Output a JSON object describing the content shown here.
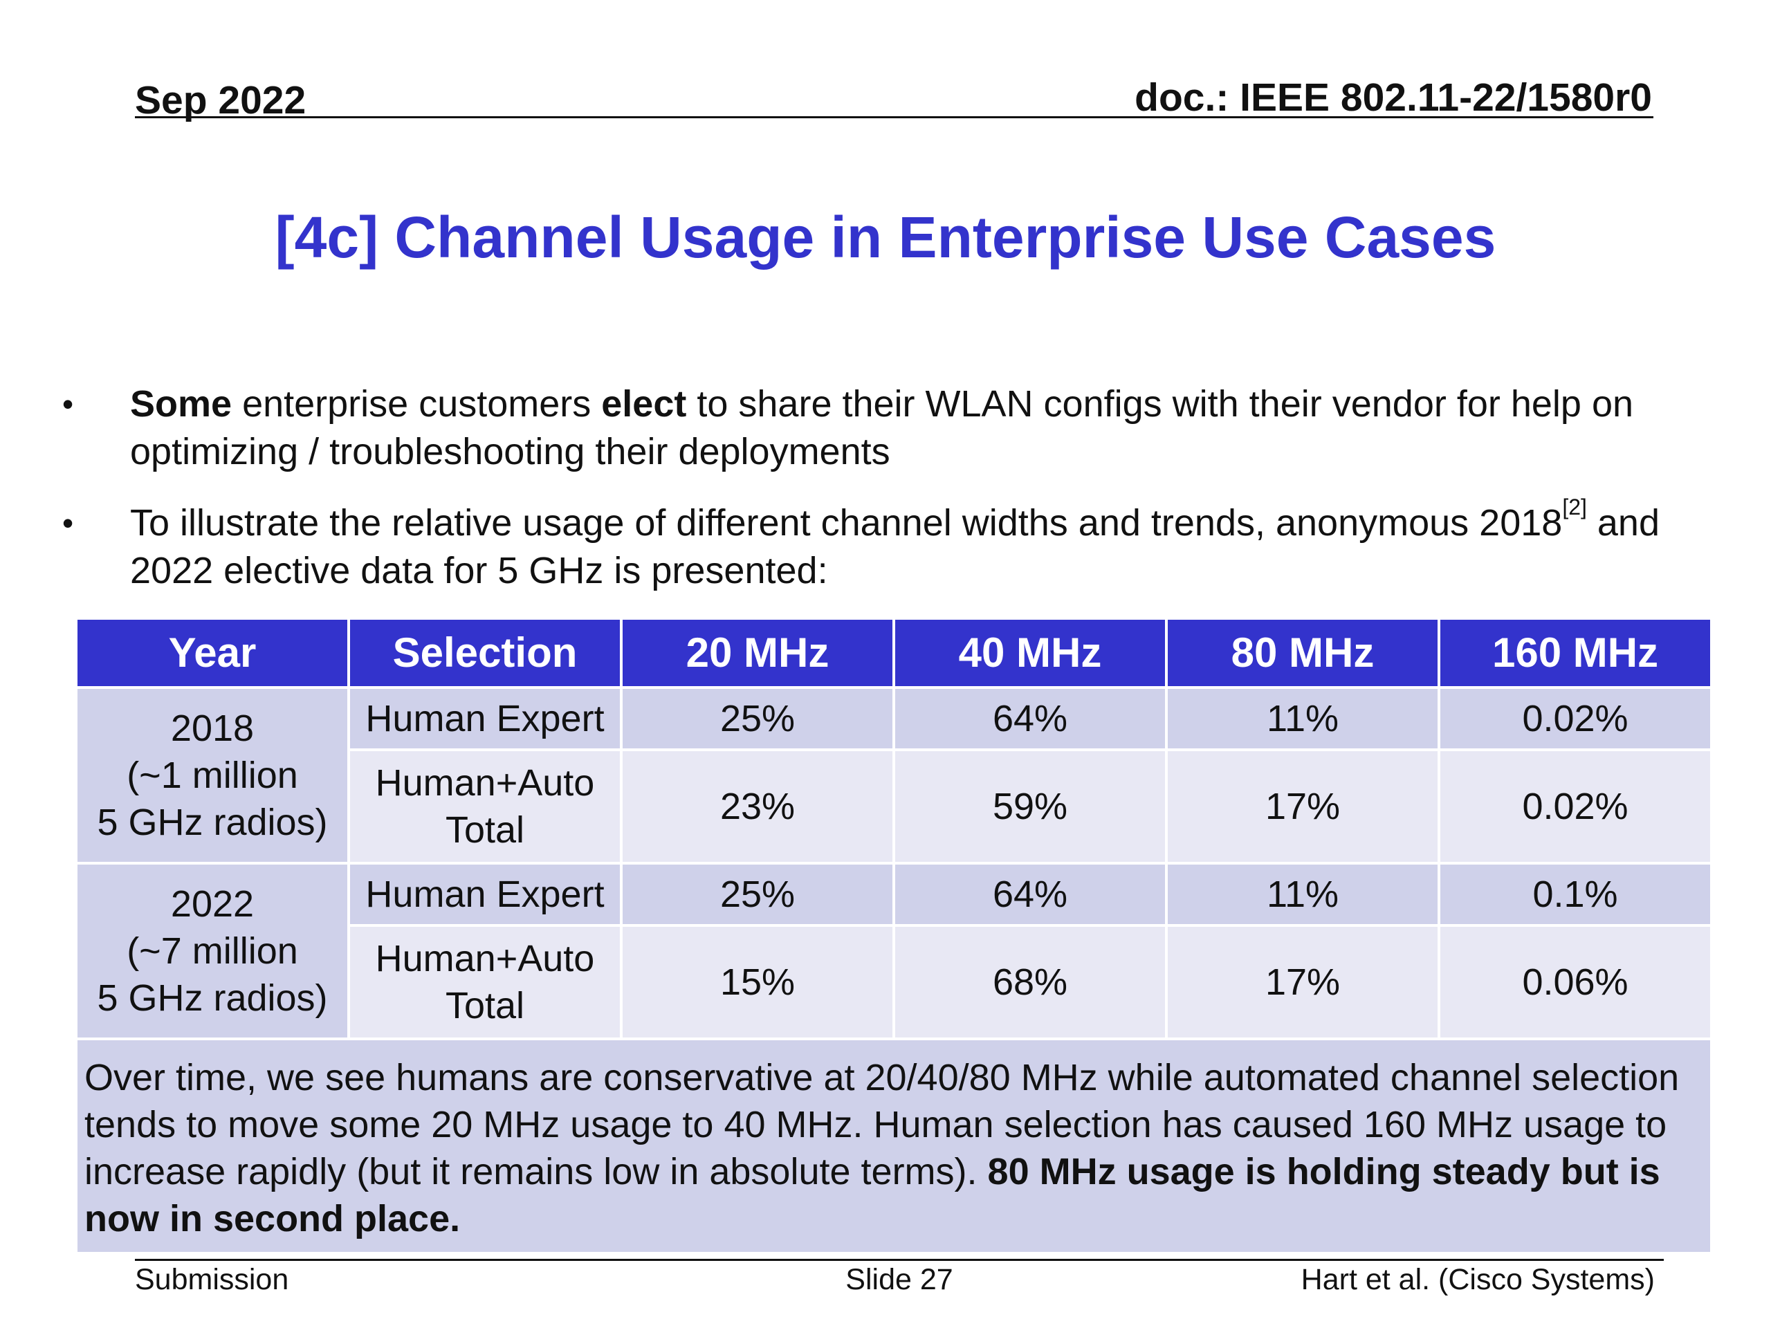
{
  "header": {
    "date": "Sep 2022",
    "doc": "doc.: IEEE 802.11-22/1580r0"
  },
  "title": "[4c] Channel Usage in Enterprise Use Cases",
  "bullets": [
    {
      "bold1": "Some",
      "t1": " enterprise customers ",
      "bold2": "elect",
      "t2": " to share their WLAN configs with their vendor for help on optimizing / troubleshooting their deployments"
    },
    {
      "t1": "To illustrate the relative usage of different channel widths and trends, anonymous 2018",
      "sup": "[2]",
      "t2": " and 2022 elective data for 5 GHz is presented:"
    }
  ],
  "table": {
    "headers": [
      "Year",
      "Selection",
      "20 MHz",
      "40 MHz",
      "80 MHz",
      "160 MHz"
    ],
    "groups": [
      {
        "year": [
          "2018",
          "(~1 million",
          "5 GHz radios)"
        ],
        "rows": [
          {
            "selection": [
              "Human Expert"
            ],
            "values": [
              "25%",
              "64%",
              "11%",
              "0.02%"
            ]
          },
          {
            "selection": [
              "Human+Auto",
              "Total"
            ],
            "values": [
              "23%",
              "59%",
              "17%",
              "0.02%"
            ]
          }
        ]
      },
      {
        "year": [
          "2022",
          "(~7 million",
          "5 GHz radios)"
        ],
        "rows": [
          {
            "selection": [
              "Human Expert"
            ],
            "values": [
              "25%",
              "64%",
              "11%",
              "0.1%"
            ]
          },
          {
            "selection": [
              "Human+Auto",
              "Total"
            ],
            "values": [
              "15%",
              "68%",
              "17%",
              "0.06%"
            ]
          }
        ]
      }
    ],
    "note": {
      "text": "Over time, we see humans are conservative at 20/40/80 MHz while automated channel selection tends to move some 20 MHz usage to 40 MHz. Human selection has caused 160 MHz usage to increase rapidly (but it remains low in absolute terms). ",
      "bold": "80 MHz usage is holding steady but is now in second place."
    }
  },
  "footer": {
    "left": "Submission",
    "center": "Slide 27",
    "right": "Hart et al. (Cisco Systems)"
  },
  "colors": {
    "title": "#3333cc",
    "header_bg": "#3333cc",
    "row_dark": "#cfd1ea",
    "row_light": "#e8e8f4"
  }
}
